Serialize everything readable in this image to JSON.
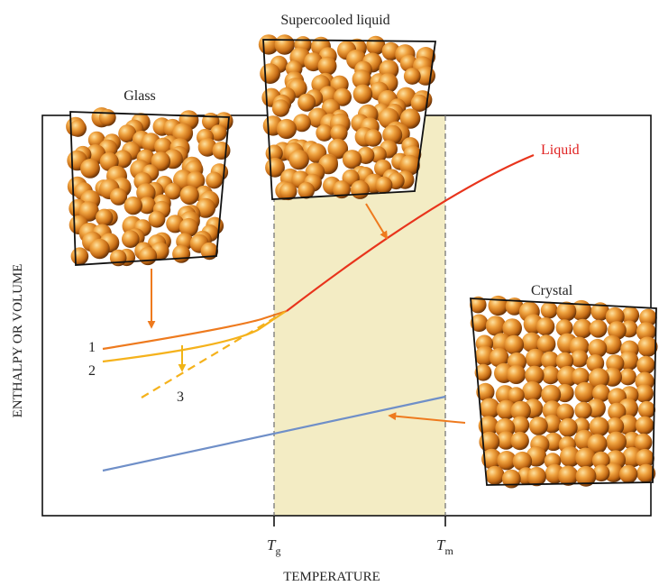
{
  "labels": {
    "glass": "Glass",
    "supercooled": "Supercooled liquid",
    "liquid": "Liquid",
    "crystal": "Crystal",
    "curve1": "1",
    "curve2": "2",
    "curve3": "3",
    "tg_main": "T",
    "tg_sub": "g",
    "tm_main": "T",
    "tm_sub": "m",
    "xlabel": "TEMPERATURE",
    "ylabel": "ENTHALPY OR VOLUME"
  },
  "colors": {
    "liquid_line": "#e8341c",
    "glass_line_1": "#ee7a1e",
    "glass_line_2": "#f5b21c",
    "crystal_line": "#6f8fc8",
    "arrow": "#ee7a1e",
    "arrow_curve2": "#f0b416",
    "liquid_label": "#e02020",
    "band": "#f3ecc4",
    "sphere_light": "#fde1a0",
    "sphere_mid": "#e4922a",
    "sphere_dark": "#6a3208"
  }
}
